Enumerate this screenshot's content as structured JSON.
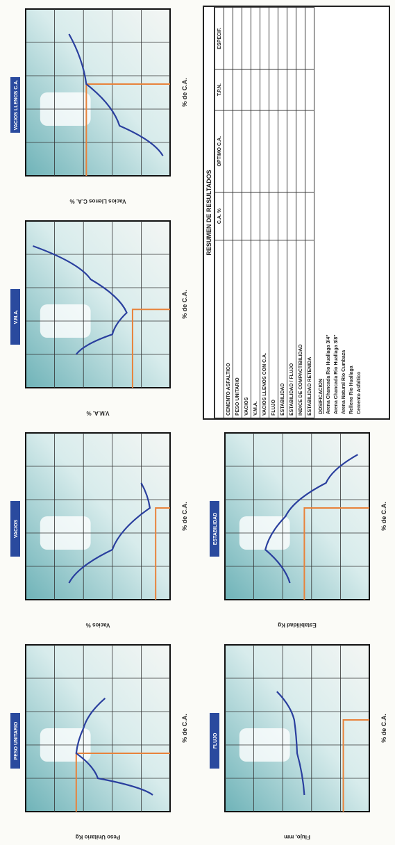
{
  "charts": [
    {
      "title": "PESO UNITARIO",
      "y_label": "Peso Unitario Kg",
      "x_label": "% de C.A."
    },
    {
      "title": "VACIOS",
      "y_label": "Vacios %",
      "x_label": "% de C.A."
    },
    {
      "title": "V.M.A.",
      "y_label": "V.M.A. %",
      "x_label": "% de C.A."
    },
    {
      "title": "VACIOS LLENOS C.A.",
      "y_label": "Vacios Llenos C.A. %",
      "x_label": "% de C.A."
    },
    {
      "title": "FLUJO",
      "y_label": "Flujo, mm",
      "x_label": "% de C.A."
    },
    {
      "title": "ESTABILIDAD",
      "y_label": "Estabilidad Kg",
      "x_label": "% de C.A."
    }
  ],
  "table": {
    "title": "RESUMEN DE RESULTADOS",
    "headers": [
      "C.A. %",
      "OPTIMO C.A.",
      "T.P.N.",
      "ESPECIF."
    ],
    "rows": [
      "CEMENTO ASFALTICO",
      "PESO UNITARIO",
      "VACIOS",
      "V.M.A.",
      "VACIOS LLENOS CON C.A.",
      "FLUJO",
      "ESTABILIDAD",
      "ESTABILIDAD / FLUJO",
      "INDICE DE COMPACTIBILIDAD",
      "ESTABILIDAD RETENIDA"
    ]
  },
  "composition": {
    "title": "DOSIFICACION",
    "lines": [
      "Arena Chancada Rio Huallaga 3/4\"",
      "Arena Chancada Rio Huallaga 3/8\"",
      "Arena Natural Rio Cumbaza",
      "Relleno Rio Huallaga",
      "Cemento Asfaltico"
    ]
  }
}
